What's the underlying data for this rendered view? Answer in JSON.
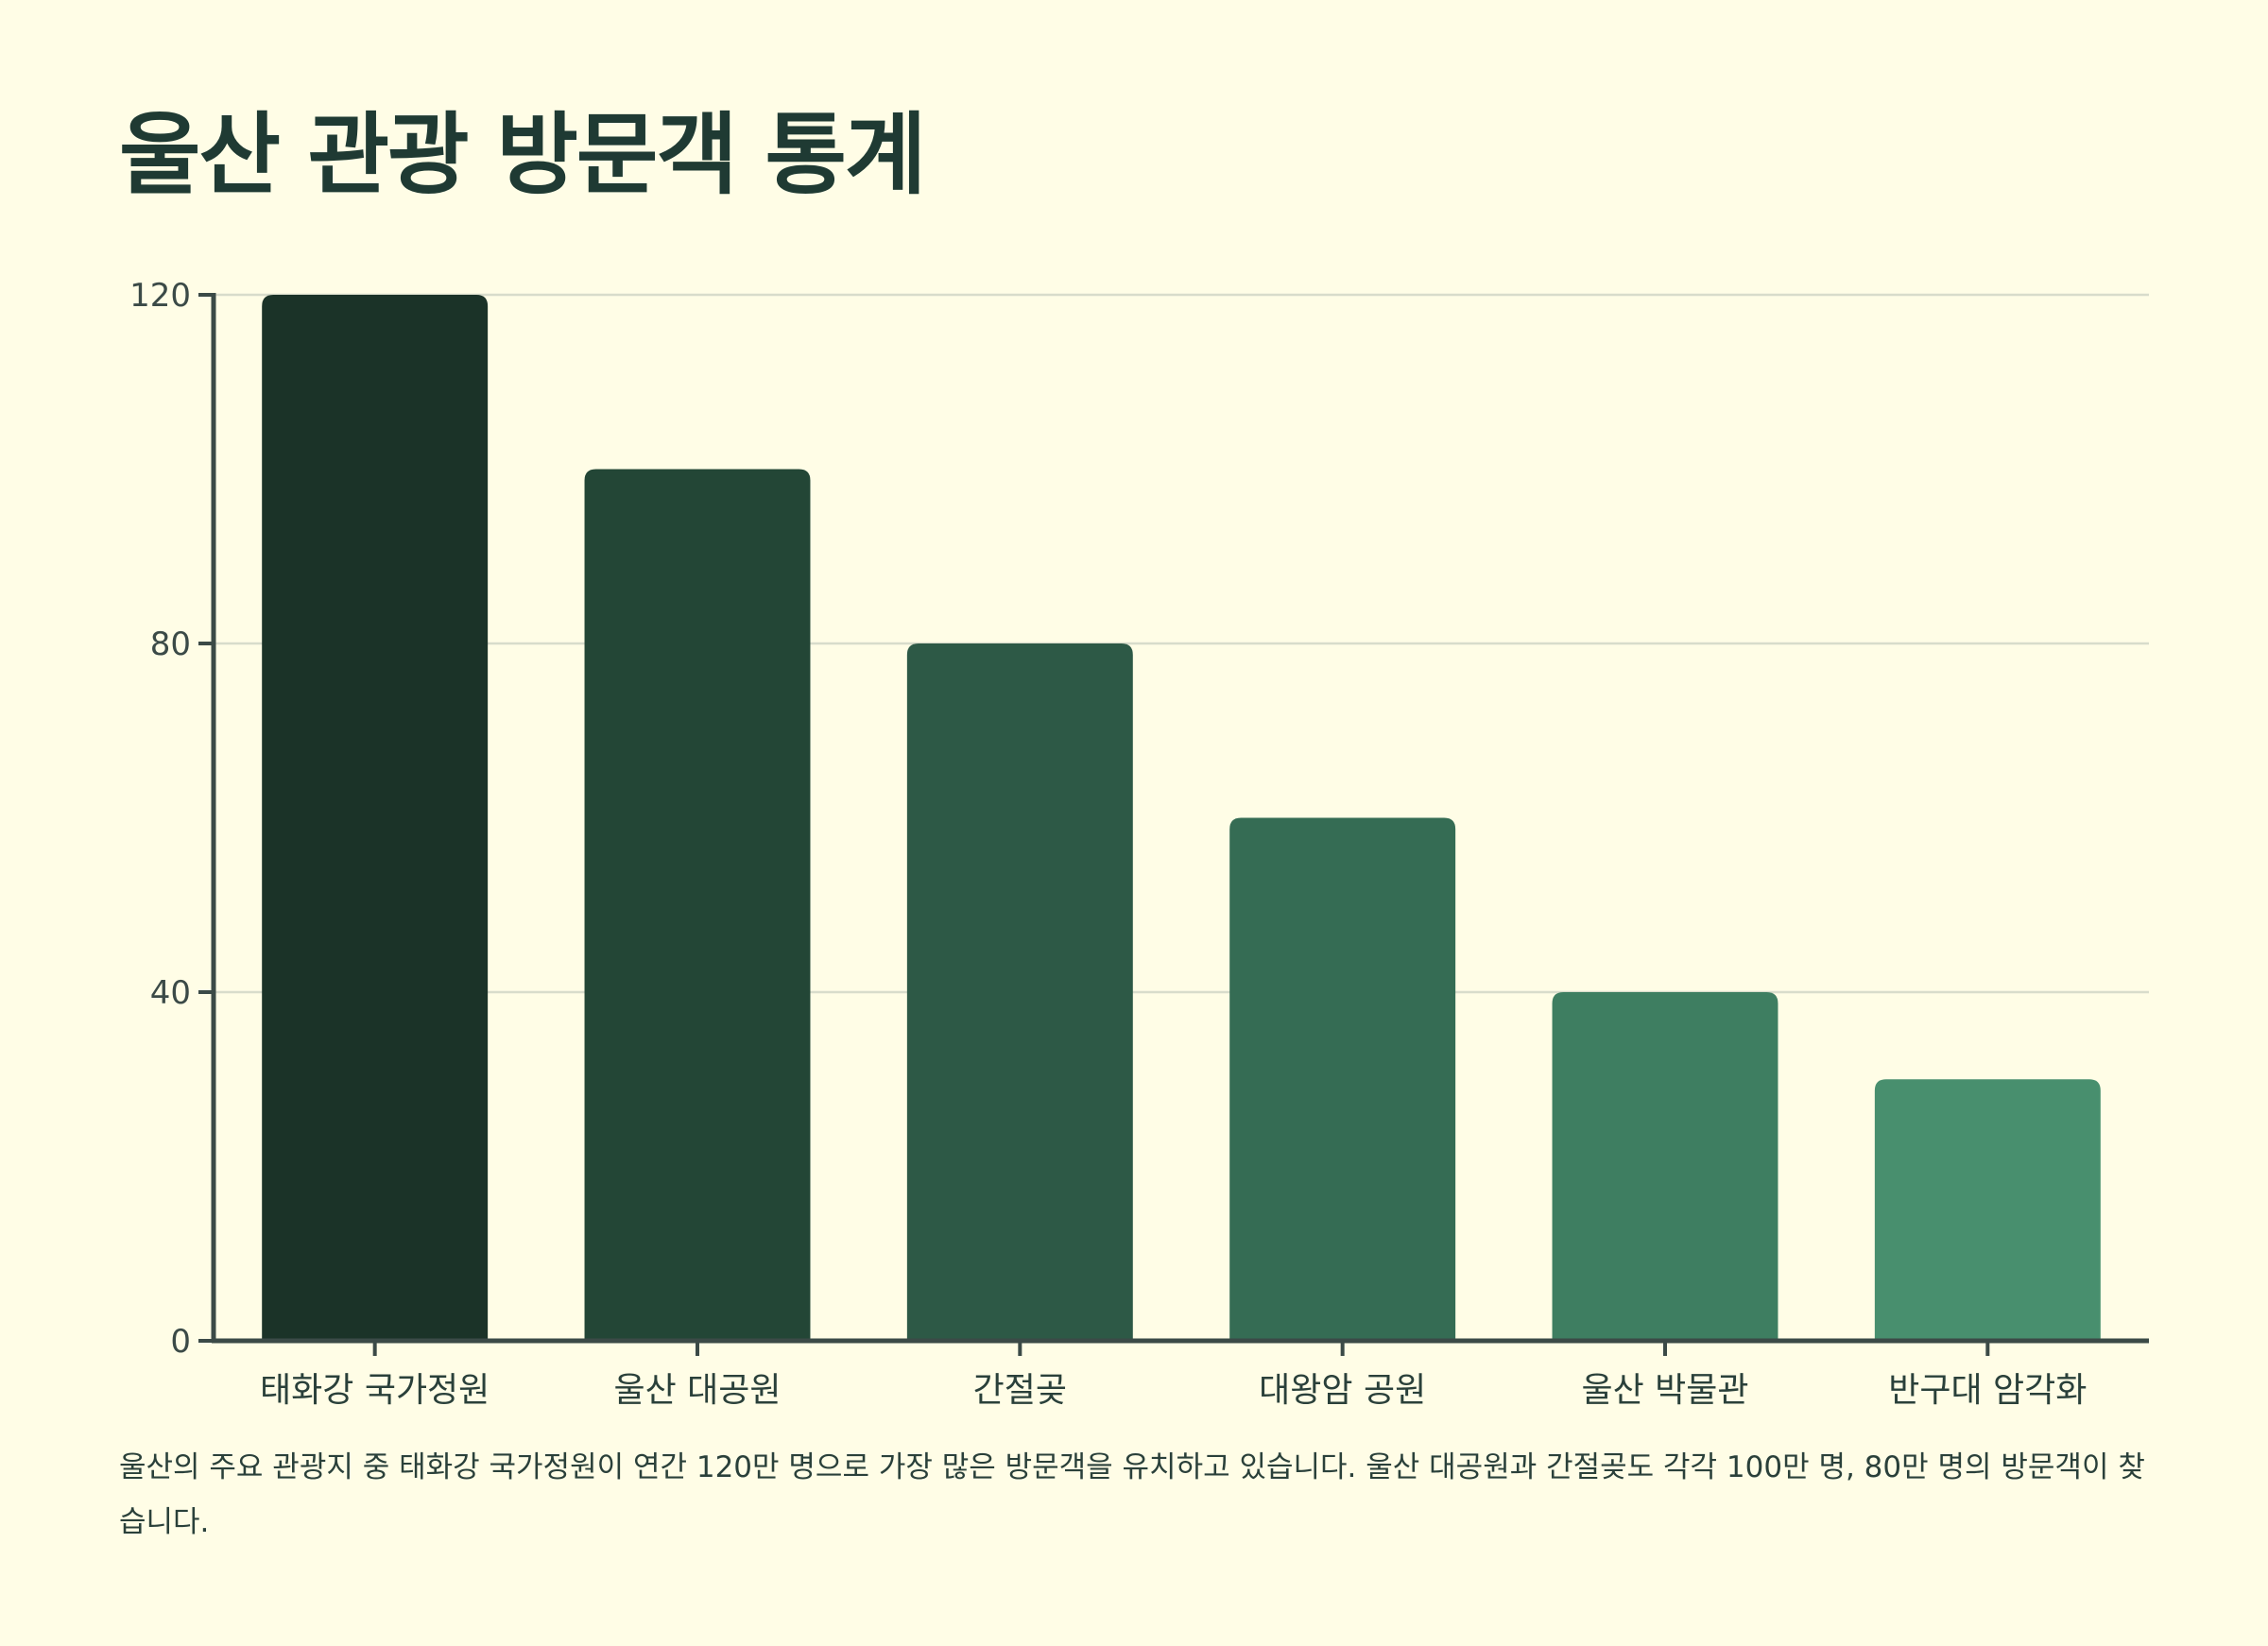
{
  "title": "울산 관광 방문객 통계",
  "caption": "울산의 주요 관광지 중 태화강 국가정원이 연간 120만 명으로 가장 많은 방문객을 유치하고 있습니다. 울산 대공원과 간절곶도 각각 100만 명, 80만 명의 방문객이 찾습니다.",
  "chart_data": {
    "type": "bar",
    "categories": [
      "태화강 국가정원",
      "울산 대공원",
      "간절곶",
      "대왕암 공원",
      "울산 박물관",
      "반구대 암각화"
    ],
    "values": [
      120,
      100,
      80,
      60,
      40,
      30
    ],
    "ylim": [
      0,
      120
    ],
    "yticks": [
      0,
      40,
      80,
      120
    ],
    "grid": true,
    "colors": [
      "#1b3328",
      "#234636",
      "#2d5946",
      "#356c54",
      "#3e7e61",
      "#488f6e"
    ],
    "axis_color": "#3b4a47",
    "grid_color": "#d8dccb"
  }
}
